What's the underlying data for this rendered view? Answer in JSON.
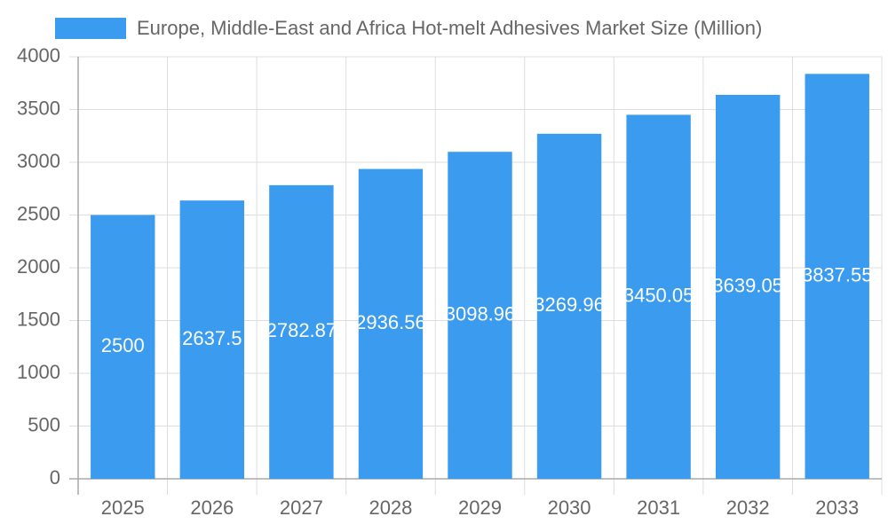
{
  "chart_data": {
    "type": "bar",
    "series": [
      {
        "name": "Europe, Middle-East and Africa Hot-melt Adhesives Market Size (Million)",
        "color": "#3a9bef",
        "values": [
          2500,
          2637.5,
          2782.87,
          2936.56,
          3098.96,
          3269.96,
          3450.05,
          3639.05,
          3837.55
        ]
      }
    ],
    "categories": [
      "2025",
      "2026",
      "2027",
      "2028",
      "2029",
      "2030",
      "2031",
      "2032",
      "2033"
    ],
    "ylim": [
      0,
      4000
    ],
    "yticks": [
      0,
      500,
      1000,
      1500,
      2000,
      2500,
      3000,
      3500,
      4000
    ],
    "grid": true
  }
}
